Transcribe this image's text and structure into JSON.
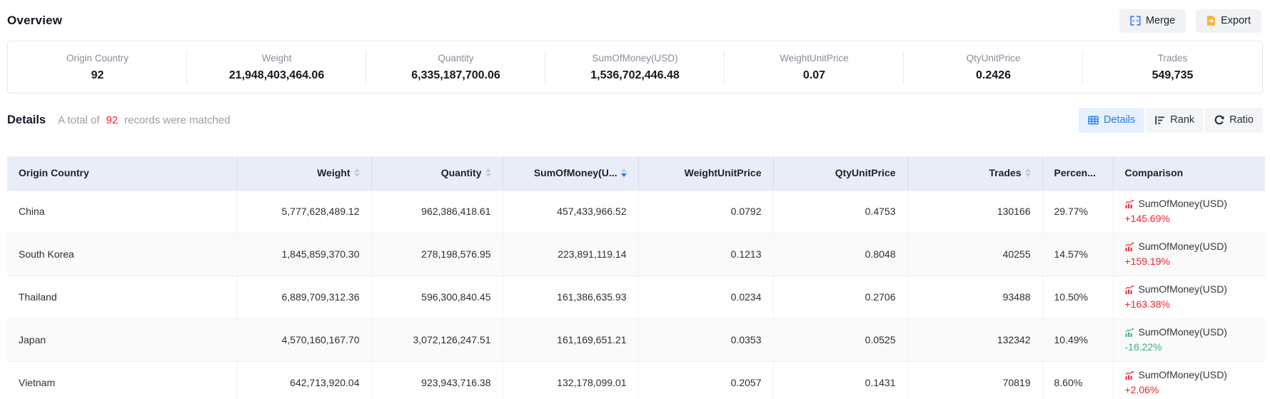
{
  "page": {
    "overview_title": "Overview",
    "details_title": "Details",
    "match_prefix": "A total of",
    "match_count": "92",
    "match_suffix": "records were matched"
  },
  "toolbar": {
    "merge_label": "Merge",
    "export_label": "Export",
    "merge_icon": "merge-cells-icon",
    "export_icon": "export-file-icon"
  },
  "view_tabs": [
    {
      "label": "Details",
      "icon": "table-icon",
      "active": true
    },
    {
      "label": "Rank",
      "icon": "rank-icon",
      "active": false
    },
    {
      "label": "Ratio",
      "icon": "ratio-icon",
      "active": false
    }
  ],
  "overview_stats": [
    {
      "label": "Origin Country",
      "value": "92"
    },
    {
      "label": "Weight",
      "value": "21,948,403,464.06"
    },
    {
      "label": "Quantity",
      "value": "6,335,187,700.06"
    },
    {
      "label": "SumOfMoney(USD)",
      "value": "1,536,702,446.48"
    },
    {
      "label": "WeightUnitPrice",
      "value": "0.07"
    },
    {
      "label": "QtyUnitPrice",
      "value": "0.2426"
    },
    {
      "label": "Trades",
      "value": "549,735"
    }
  ],
  "colors": {
    "accent_blue": "#1f7bf4",
    "increase_red": "#f5222d",
    "decrease_green": "#36b37e",
    "header_bg": "#e8edf8"
  },
  "table": {
    "columns": [
      {
        "key": "origin_country",
        "label": "Origin Country",
        "sortable": false,
        "sort": null
      },
      {
        "key": "weight",
        "label": "Weight",
        "sortable": true,
        "sort": null
      },
      {
        "key": "quantity",
        "label": "Quantity",
        "sortable": true,
        "sort": null
      },
      {
        "key": "sum_of_money",
        "label": "SumOfMoney(U...",
        "sortable": true,
        "sort": "desc"
      },
      {
        "key": "weight_unit_price",
        "label": "WeightUnitPrice",
        "sortable": false,
        "sort": null
      },
      {
        "key": "qty_unit_price",
        "label": "QtyUnitPrice",
        "sortable": false,
        "sort": null
      },
      {
        "key": "trades",
        "label": "Trades",
        "sortable": true,
        "sort": null
      },
      {
        "key": "percent",
        "label": "Percen...",
        "sortable": false,
        "sort": null
      },
      {
        "key": "comparison",
        "label": "Comparison",
        "sortable": false,
        "sort": null
      }
    ],
    "rows": [
      {
        "origin_country": "China",
        "weight": "5,777,628,489.12",
        "quantity": "962,386,418.61",
        "sum_of_money": "457,433,966.52",
        "weight_unit_price": "0.0792",
        "qty_unit_price": "0.4753",
        "trades": "130166",
        "percent": "29.77%",
        "comparison": {
          "metric": "SumOfMoney(USD)",
          "change": "+145.69%",
          "direction": "up"
        }
      },
      {
        "origin_country": "South Korea",
        "weight": "1,845,859,370.30",
        "quantity": "278,198,576.95",
        "sum_of_money": "223,891,119.14",
        "weight_unit_price": "0.1213",
        "qty_unit_price": "0.8048",
        "trades": "40255",
        "percent": "14.57%",
        "comparison": {
          "metric": "SumOfMoney(USD)",
          "change": "+159.19%",
          "direction": "up"
        }
      },
      {
        "origin_country": "Thailand",
        "weight": "6,889,709,312.36",
        "quantity": "596,300,840.45",
        "sum_of_money": "161,386,635.93",
        "weight_unit_price": "0.0234",
        "qty_unit_price": "0.2706",
        "trades": "93488",
        "percent": "10.50%",
        "comparison": {
          "metric": "SumOfMoney(USD)",
          "change": "+163.38%",
          "direction": "up"
        }
      },
      {
        "origin_country": "Japan",
        "weight": "4,570,160,167.70",
        "quantity": "3,072,126,247.51",
        "sum_of_money": "161,169,651.21",
        "weight_unit_price": "0.0353",
        "qty_unit_price": "0.0525",
        "trades": "132342",
        "percent": "10.49%",
        "comparison": {
          "metric": "SumOfMoney(USD)",
          "change": "-16.22%",
          "direction": "down"
        }
      },
      {
        "origin_country": "Vietnam",
        "weight": "642,713,920.04",
        "quantity": "923,943,716.38",
        "sum_of_money": "132,178,099.01",
        "weight_unit_price": "0.2057",
        "qty_unit_price": "0.1431",
        "trades": "70819",
        "percent": "8.60%",
        "comparison": {
          "metric": "SumOfMoney(USD)",
          "change": "+2.06%",
          "direction": "up"
        }
      }
    ]
  }
}
